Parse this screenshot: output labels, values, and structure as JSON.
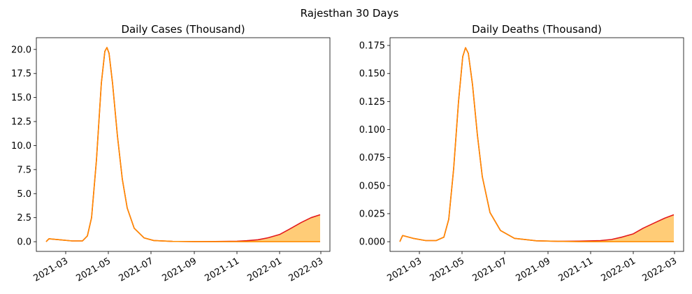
{
  "figure_title": "Rajesthan 30 Days",
  "colors": {
    "forecast_line": "#e31a1c",
    "base_line": "#ff8c00",
    "fill": "#ffcc77",
    "axis": "#000000"
  },
  "chart_data": [
    {
      "type": "area",
      "title": "Daily Cases (Thousand)",
      "xlabel": "",
      "ylabel": "",
      "x_range": [
        "2021-01-18",
        "2022-03-14"
      ],
      "ylim": [
        -1.01,
        21.22
      ],
      "x_ticks": [
        "2021-03",
        "2021-05",
        "2021-07",
        "2021-09",
        "2021-11",
        "2022-01",
        "2022-03"
      ],
      "y_ticks": [
        "0.0",
        "2.5",
        "5.0",
        "7.5",
        "10.0",
        "12.5",
        "15.0",
        "17.5",
        "20.0"
      ],
      "grid": false,
      "series": [
        {
          "role": "forecast",
          "points": [
            [
              "2021-02-01",
              0.0
            ],
            [
              "2021-02-05",
              0.3
            ],
            [
              "2021-02-20",
              0.2
            ],
            [
              "2021-03-10",
              0.08
            ],
            [
              "2021-03-25",
              0.08
            ],
            [
              "2021-04-01",
              0.6
            ],
            [
              "2021-04-07",
              2.5
            ],
            [
              "2021-04-14",
              8.5
            ],
            [
              "2021-04-21",
              16.5
            ],
            [
              "2021-04-26",
              19.8
            ],
            [
              "2021-04-29",
              20.2
            ],
            [
              "2021-05-02",
              19.6
            ],
            [
              "2021-05-07",
              16.5
            ],
            [
              "2021-05-14",
              11.0
            ],
            [
              "2021-05-21",
              6.5
            ],
            [
              "2021-05-28",
              3.5
            ],
            [
              "2021-06-07",
              1.4
            ],
            [
              "2021-06-21",
              0.4
            ],
            [
              "2021-07-05",
              0.12
            ],
            [
              "2021-08-01",
              0.03
            ],
            [
              "2021-09-01",
              0.01
            ],
            [
              "2021-10-01",
              0.02
            ],
            [
              "2021-11-01",
              0.05
            ],
            [
              "2021-11-15",
              0.1
            ],
            [
              "2021-12-01",
              0.2
            ],
            [
              "2021-12-15",
              0.4
            ],
            [
              "2022-01-01",
              0.75
            ],
            [
              "2022-01-15",
              1.3
            ],
            [
              "2022-02-01",
              2.0
            ],
            [
              "2022-02-15",
              2.5
            ],
            [
              "2022-02-28",
              2.8
            ]
          ]
        },
        {
          "role": "base",
          "points": [
            [
              "2021-02-01",
              0.0
            ],
            [
              "2021-02-05",
              0.3
            ],
            [
              "2021-02-20",
              0.2
            ],
            [
              "2021-03-10",
              0.08
            ],
            [
              "2021-03-25",
              0.08
            ],
            [
              "2021-04-01",
              0.6
            ],
            [
              "2021-04-07",
              2.5
            ],
            [
              "2021-04-14",
              8.5
            ],
            [
              "2021-04-21",
              16.5
            ],
            [
              "2021-04-26",
              19.8
            ],
            [
              "2021-04-29",
              20.2
            ],
            [
              "2021-05-02",
              19.6
            ],
            [
              "2021-05-07",
              16.5
            ],
            [
              "2021-05-14",
              11.0
            ],
            [
              "2021-05-21",
              6.5
            ],
            [
              "2021-05-28",
              3.5
            ],
            [
              "2021-06-07",
              1.4
            ],
            [
              "2021-06-21",
              0.4
            ],
            [
              "2021-07-05",
              0.12
            ],
            [
              "2021-08-01",
              0.03
            ],
            [
              "2021-09-01",
              0.01
            ],
            [
              "2021-10-01",
              0.0
            ],
            [
              "2021-12-01",
              0.0
            ],
            [
              "2022-02-28",
              0.0
            ]
          ]
        }
      ]
    },
    {
      "type": "area",
      "title": "Daily Deaths (Thousand)",
      "xlabel": "",
      "ylabel": "",
      "x_range": [
        "2021-01-18",
        "2022-03-14"
      ],
      "ylim": [
        -0.00866,
        0.1819
      ],
      "x_ticks": [
        "2021-03",
        "2021-05",
        "2021-07",
        "2021-09",
        "2021-11",
        "2022-01",
        "2022-03"
      ],
      "y_ticks": [
        "0.000",
        "0.025",
        "0.050",
        "0.075",
        "0.100",
        "0.125",
        "0.150",
        "0.175"
      ],
      "grid": false,
      "series": [
        {
          "role": "forecast",
          "points": [
            [
              "2021-02-01",
              0.0
            ],
            [
              "2021-02-05",
              0.0055
            ],
            [
              "2021-02-20",
              0.003
            ],
            [
              "2021-03-10",
              0.001
            ],
            [
              "2021-03-25",
              0.001
            ],
            [
              "2021-04-05",
              0.004
            ],
            [
              "2021-04-12",
              0.02
            ],
            [
              "2021-04-19",
              0.065
            ],
            [
              "2021-04-26",
              0.125
            ],
            [
              "2021-05-02",
              0.165
            ],
            [
              "2021-05-06",
              0.173
            ],
            [
              "2021-05-10",
              0.168
            ],
            [
              "2021-05-16",
              0.14
            ],
            [
              "2021-05-23",
              0.095
            ],
            [
              "2021-05-30",
              0.058
            ],
            [
              "2021-06-10",
              0.026
            ],
            [
              "2021-06-25",
              0.01
            ],
            [
              "2021-07-15",
              0.003
            ],
            [
              "2021-08-15",
              0.0008
            ],
            [
              "2021-09-15",
              0.0003
            ],
            [
              "2021-10-15",
              0.0005
            ],
            [
              "2021-11-15",
              0.001
            ],
            [
              "2021-12-01",
              0.002
            ],
            [
              "2021-12-15",
              0.004
            ],
            [
              "2022-01-01",
              0.007
            ],
            [
              "2022-01-15",
              0.012
            ],
            [
              "2022-02-01",
              0.017
            ],
            [
              "2022-02-15",
              0.021
            ],
            [
              "2022-02-28",
              0.024
            ]
          ]
        },
        {
          "role": "base",
          "points": [
            [
              "2021-02-01",
              0.0
            ],
            [
              "2021-02-05",
              0.0055
            ],
            [
              "2021-02-20",
              0.003
            ],
            [
              "2021-03-10",
              0.001
            ],
            [
              "2021-03-25",
              0.001
            ],
            [
              "2021-04-05",
              0.004
            ],
            [
              "2021-04-12",
              0.02
            ],
            [
              "2021-04-19",
              0.065
            ],
            [
              "2021-04-26",
              0.125
            ],
            [
              "2021-05-02",
              0.165
            ],
            [
              "2021-05-06",
              0.173
            ],
            [
              "2021-05-10",
              0.168
            ],
            [
              "2021-05-16",
              0.14
            ],
            [
              "2021-05-23",
              0.095
            ],
            [
              "2021-05-30",
              0.058
            ],
            [
              "2021-06-10",
              0.026
            ],
            [
              "2021-06-25",
              0.01
            ],
            [
              "2021-07-15",
              0.003
            ],
            [
              "2021-08-15",
              0.0008
            ],
            [
              "2021-09-15",
              0.0003
            ],
            [
              "2021-10-15",
              0.0
            ],
            [
              "2021-12-01",
              0.0
            ],
            [
              "2022-02-28",
              0.0
            ]
          ]
        }
      ]
    }
  ]
}
